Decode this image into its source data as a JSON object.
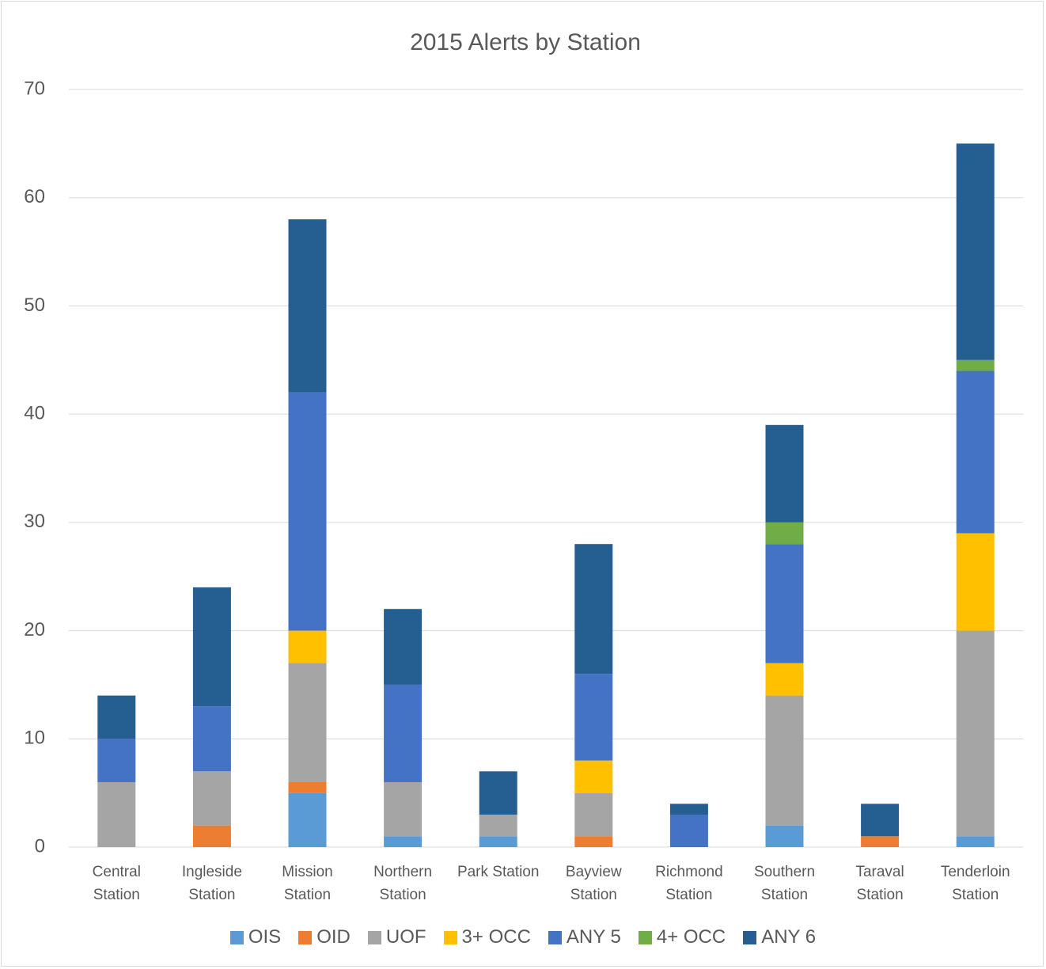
{
  "chart_data": {
    "type": "stacked_bar",
    "title": "2015 Alerts by Station",
    "categories": [
      "Central Station",
      "Ingleside Station",
      "Mission Station",
      "Northern Station",
      "Park Station",
      "Bayview Station",
      "Richmond Station",
      "Southern Station",
      "Taraval Station",
      "Tenderloin Station"
    ],
    "series": [
      {
        "name": "OIS",
        "color": "#5b9bd5",
        "values": [
          0,
          0,
          5,
          1,
          1,
          0,
          0,
          2,
          0,
          1
        ]
      },
      {
        "name": "OID",
        "color": "#ed7d31",
        "values": [
          0,
          2,
          1,
          0,
          0,
          1,
          0,
          0,
          1,
          0
        ]
      },
      {
        "name": "UOF",
        "color": "#a5a5a5",
        "values": [
          6,
          5,
          11,
          5,
          2,
          4,
          0,
          12,
          0,
          19
        ]
      },
      {
        "name": "3+ OCC",
        "color": "#ffc000",
        "values": [
          0,
          0,
          3,
          0,
          0,
          3,
          0,
          3,
          0,
          9
        ]
      },
      {
        "name": "ANY 5",
        "color": "#4472c4",
        "values": [
          4,
          6,
          22,
          9,
          0,
          8,
          3,
          11,
          0,
          15
        ]
      },
      {
        "name": "4+ OCC",
        "color": "#70ad47",
        "values": [
          0,
          0,
          0,
          0,
          0,
          0,
          0,
          2,
          0,
          1
        ]
      },
      {
        "name": "ANY 6",
        "color": "#255e91",
        "values": [
          4,
          11,
          16,
          7,
          4,
          12,
          1,
          9,
          3,
          20
        ]
      }
    ],
    "ylim": [
      0,
      70
    ],
    "yticks": [
      0,
      10,
      20,
      30,
      40,
      50,
      60,
      70
    ],
    "grid": true,
    "legend": "bottom"
  }
}
